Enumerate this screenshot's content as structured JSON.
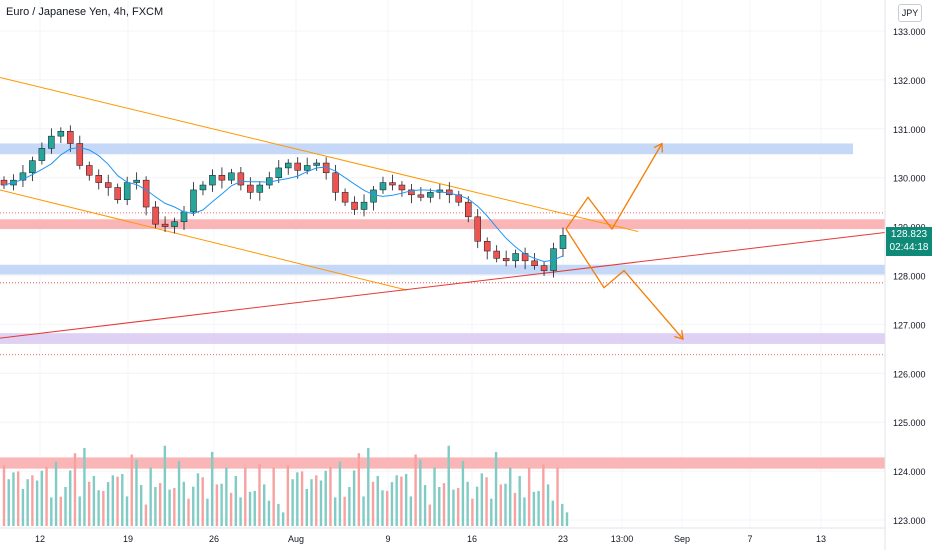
{
  "header": {
    "symbol_title": "Euro / Japanese Yen, 4h, FXCM",
    "currency_badge": "JPY"
  },
  "price_tag": {
    "price": "128.823",
    "countdown": "02:44:18"
  },
  "colors": {
    "bull": "#26a69a",
    "bear": "#ef5350",
    "ma": "#2196f3",
    "channel": "#ff9800",
    "trend": "#e53935",
    "forecast": "#f57c00",
    "zone_blue": "#bbd1f7",
    "zone_red": "#f9a9a9",
    "zone_purple": "#d8c9f1"
  },
  "chart_data": {
    "type": "candlestick",
    "title": "Euro / Japanese Yen, 4h, FXCM",
    "y_axis": {
      "ylim": [
        123.0,
        133.6
      ],
      "position": "right",
      "ticks": [
        "133.000",
        "132.000",
        "131.000",
        "130.000",
        "129.000",
        "128.000",
        "127.000",
        "126.000",
        "125.000",
        "124.000",
        "123.000"
      ]
    },
    "x_axis": {
      "ticks": [
        "12",
        "19",
        "26",
        "Aug",
        "9",
        "16",
        "23",
        "13:00",
        "Sep",
        "7",
        "13"
      ]
    },
    "last_price": 128.823,
    "close_series": [
      129.85,
      129.95,
      130.1,
      130.35,
      130.6,
      130.85,
      130.95,
      130.7,
      130.25,
      130.05,
      129.9,
      129.8,
      129.55,
      129.9,
      129.95,
      129.4,
      129.05,
      129.0,
      129.1,
      129.3,
      129.75,
      129.85,
      130.05,
      129.95,
      130.1,
      129.85,
      129.7,
      129.85,
      130.0,
      130.2,
      130.3,
      130.15,
      130.25,
      130.3,
      130.1,
      129.7,
      129.5,
      129.35,
      129.5,
      129.75,
      129.9,
      129.85,
      129.75,
      129.65,
      129.6,
      129.7,
      129.75,
      129.65,
      129.5,
      129.2,
      128.7,
      128.5,
      128.35,
      128.3,
      128.45,
      128.3,
      128.2,
      128.1,
      128.55,
      128.82
    ],
    "volume_relative": [
      0.85,
      0.4,
      0.55,
      0.7,
      0.3,
      0.45,
      0.6,
      0.35,
      0.5,
      0.65,
      0.4,
      0.55,
      0.3,
      0.5,
      0.45,
      0.7,
      0.35,
      0.6,
      0.4,
      0.55,
      0.5,
      0.3,
      0.45,
      0.65,
      0.4,
      0.5,
      0.35,
      0.55,
      0.6,
      0.45,
      0.3,
      0.5,
      0.4,
      0.55,
      0.65,
      0.35,
      0.45,
      0.5,
      0.4,
      0.3,
      0.55,
      0.45,
      0.5,
      0.35,
      0.6,
      0.4,
      0.5,
      0.45,
      0.3,
      0.55,
      0.4,
      0.5,
      0.35,
      0.45,
      0.5,
      0.4,
      0.3,
      0.45,
      0.2,
      0.15
    ],
    "horizontal_zones": [
      {
        "kind": "resistance",
        "color": "blue",
        "from": 130.48,
        "to": 130.7,
        "label": ""
      },
      {
        "kind": "resistance",
        "color": "red",
        "from": 128.95,
        "to": 129.15,
        "label": ""
      },
      {
        "kind": "support",
        "color": "blue",
        "from": 128.02,
        "to": 128.22,
        "label": ""
      },
      {
        "kind": "target",
        "color": "purple",
        "from": 126.6,
        "to": 126.82,
        "label": ""
      },
      {
        "kind": "volume-band",
        "color": "red",
        "from": 124.05,
        "to": 124.28,
        "label": ""
      }
    ],
    "dotted_levels": [
      129.28,
      127.85,
      126.38
    ],
    "trendlines": [
      {
        "name": "channel upper",
        "color": "orange",
        "from": {
          "x": "start",
          "y": 132.05
        },
        "to": {
          "x": "after 23",
          "y": 128.9
        }
      },
      {
        "name": "channel lower",
        "color": "orange",
        "from": {
          "x": "start",
          "y": 129.75
        },
        "to": {
          "x": "between 9 and 16",
          "y": 127.7
        }
      },
      {
        "name": "rising support",
        "color": "red",
        "from": {
          "x": "start",
          "y": 126.72
        },
        "to": {
          "x": "end",
          "y": 128.88
        }
      }
    ],
    "forecast_paths": [
      {
        "direction": "up",
        "points": [
          128.95,
          129.6,
          128.95,
          130.7
        ]
      },
      {
        "direction": "down",
        "points": [
          128.95,
          127.75,
          128.1,
          126.7
        ]
      }
    ]
  }
}
